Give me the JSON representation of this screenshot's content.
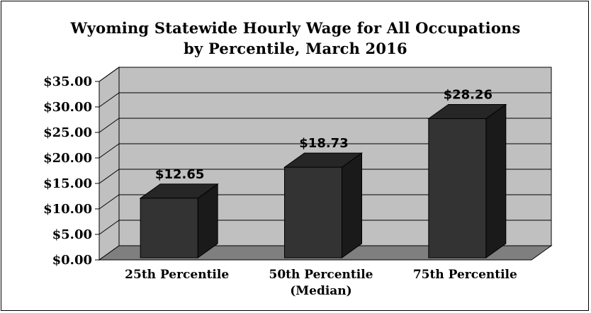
{
  "chart_data": {
    "type": "bar",
    "title_lines": [
      "Wyoming Statewide Hourly Wage for All Occupations",
      "by Percentile, March 2016"
    ],
    "categories": [
      [
        "25th Percentile"
      ],
      [
        "50th Percentile",
        "(Median)"
      ],
      [
        "75th Percentile"
      ]
    ],
    "values": [
      12.65,
      18.73,
      28.26
    ],
    "data_labels": [
      "$12.65",
      "$18.73",
      "$28.26"
    ],
    "y_ticks": [
      0,
      5,
      10,
      15,
      20,
      25,
      30,
      35
    ],
    "y_tick_labels": [
      "$0.00",
      "$5.00",
      "$10.00",
      "$15.00",
      "$20.00",
      "$25.00",
      "$30.00",
      "$35.00"
    ],
    "ylim": [
      0,
      35
    ],
    "grid": true,
    "legend": "none",
    "colors": {
      "bar_front": "#333333",
      "bar_top": "#262626",
      "bar_side": "#1a1a1a",
      "wall": "#c0c0c0",
      "floor": "#7f7f7f"
    }
  }
}
